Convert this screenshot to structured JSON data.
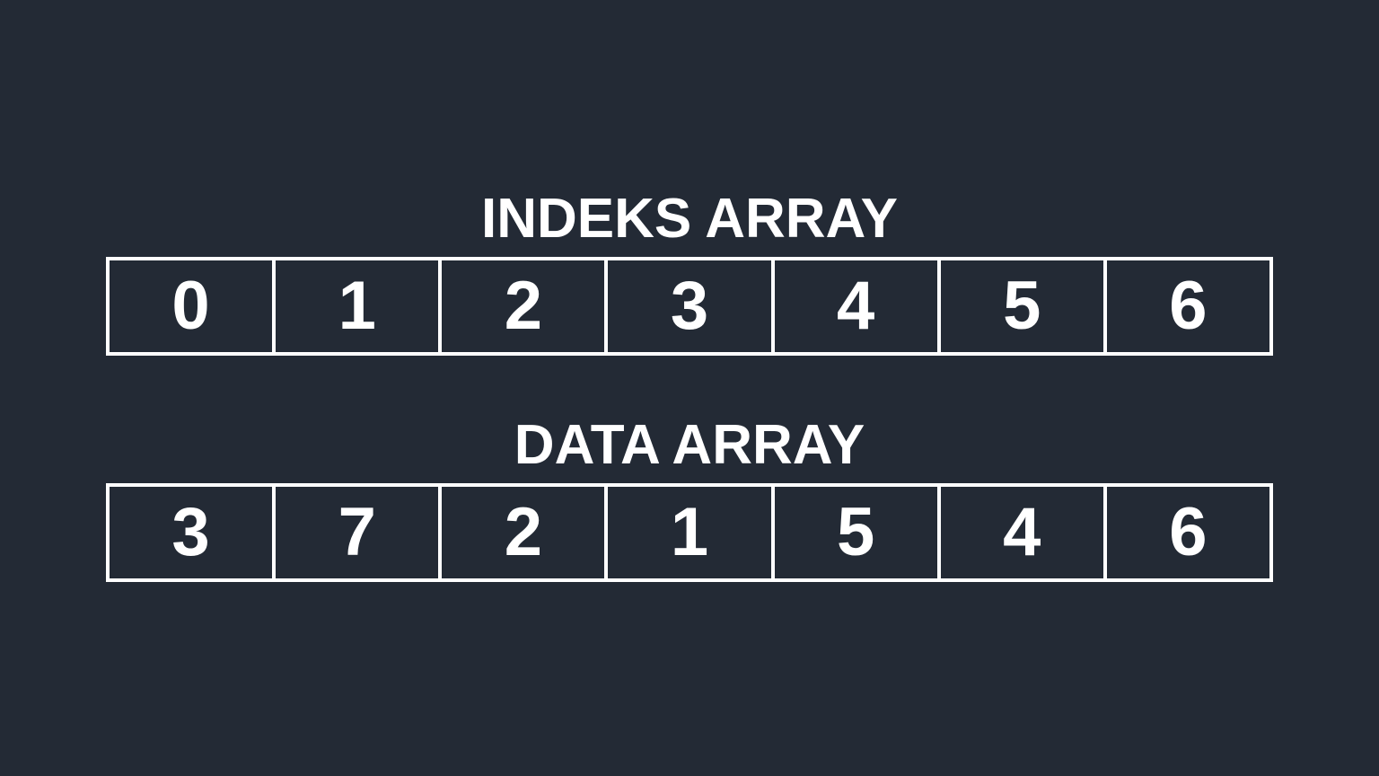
{
  "index_array": {
    "title": "INDEKS ARRAY",
    "cells": [
      "0",
      "1",
      "2",
      "3",
      "4",
      "5",
      "6"
    ]
  },
  "data_array": {
    "title": "DATA ARRAY",
    "cells": [
      "3",
      "7",
      "2",
      "1",
      "5",
      "4",
      "6"
    ]
  },
  "colors": {
    "background": "#232a35",
    "foreground": "#ffffff"
  }
}
